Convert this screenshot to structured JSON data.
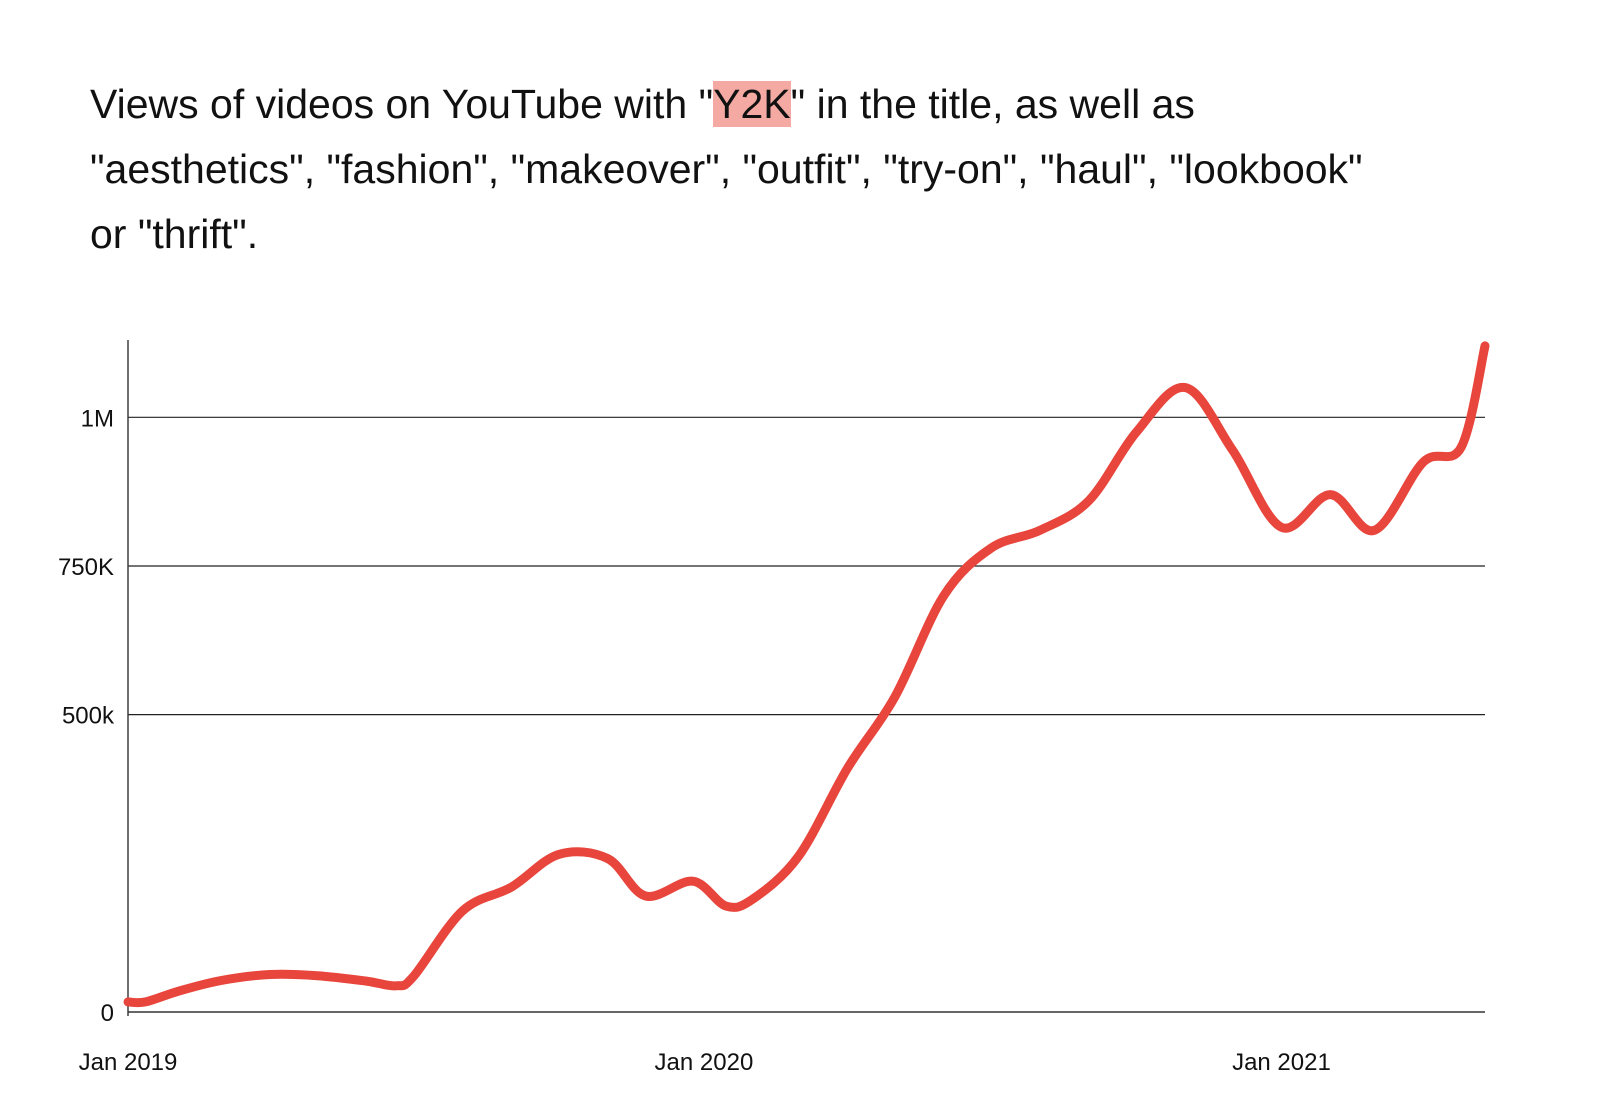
{
  "title": {
    "prefix": "Views of videos on YouTube with \"",
    "highlight": "Y2K",
    "suffix": "\" in the title, as well as \"aesthetics\", \"fashion\", \"makeover\", \"outfit\", \"try-on\", \"haul\", \"lookbook\" or \"thrift\"."
  },
  "colors": {
    "line": "#e8453c",
    "highlight": "#f4aaa3",
    "grid": "#222222"
  },
  "chart_data": {
    "type": "line",
    "title": "Views of videos on YouTube with \"Y2K\" in the title, as well as \"aesthetics\", \"fashion\", \"makeover\", \"outfit\", \"try-on\", \"haul\", \"lookbook\" or \"thrift\".",
    "xlabel": "",
    "ylabel": "",
    "x_ticks": [
      {
        "x": "2019-01-01",
        "label": "Jan 2019"
      },
      {
        "x": "2020-01-01",
        "label": "Jan 2020"
      },
      {
        "x": "2021-01-01",
        "label": "Jan 2021"
      }
    ],
    "y_ticks": [
      {
        "y": 0,
        "label": "0"
      },
      {
        "y": 500000,
        "label": "500k"
      },
      {
        "y": 750000,
        "label": "750K"
      },
      {
        "y": 1000000,
        "label": "1M"
      }
    ],
    "xlim": [
      "2019-01-01",
      "2021-05-10"
    ],
    "ylim": [
      0,
      1130000
    ],
    "grid": true,
    "series": [
      {
        "values": [
          {
            "x": "2019-01-01",
            "y": 17000
          },
          {
            "x": "2019-01-12",
            "y": 17000
          },
          {
            "x": "2019-02-02",
            "y": 35000
          },
          {
            "x": "2019-03-01",
            "y": 53000
          },
          {
            "x": "2019-04-01",
            "y": 63000
          },
          {
            "x": "2019-05-01",
            "y": 61000
          },
          {
            "x": "2019-06-01",
            "y": 52000
          },
          {
            "x": "2019-06-20",
            "y": 44000
          },
          {
            "x": "2019-07-01",
            "y": 60000
          },
          {
            "x": "2019-08-01",
            "y": 170000
          },
          {
            "x": "2019-09-01",
            "y": 210000
          },
          {
            "x": "2019-10-01",
            "y": 265000
          },
          {
            "x": "2019-11-01",
            "y": 258000
          },
          {
            "x": "2019-11-25",
            "y": 195000
          },
          {
            "x": "2019-12-25",
            "y": 220000
          },
          {
            "x": "2020-01-15",
            "y": 178000
          },
          {
            "x": "2020-02-01",
            "y": 190000
          },
          {
            "x": "2020-03-01",
            "y": 262000
          },
          {
            "x": "2020-04-01",
            "y": 410000
          },
          {
            "x": "2020-05-01",
            "y": 530000
          },
          {
            "x": "2020-06-01",
            "y": 700000
          },
          {
            "x": "2020-07-01",
            "y": 780000
          },
          {
            "x": "2020-08-01",
            "y": 810000
          },
          {
            "x": "2020-09-01",
            "y": 860000
          },
          {
            "x": "2020-10-01",
            "y": 975000
          },
          {
            "x": "2020-11-01",
            "y": 1050000
          },
          {
            "x": "2020-12-01",
            "y": 945000
          },
          {
            "x": "2021-01-01",
            "y": 815000
          },
          {
            "x": "2021-02-01",
            "y": 870000
          },
          {
            "x": "2021-03-01",
            "y": 810000
          },
          {
            "x": "2021-04-01",
            "y": 925000
          },
          {
            "x": "2021-04-25",
            "y": 950000
          },
          {
            "x": "2021-05-10",
            "y": 1120000
          }
        ]
      }
    ]
  }
}
